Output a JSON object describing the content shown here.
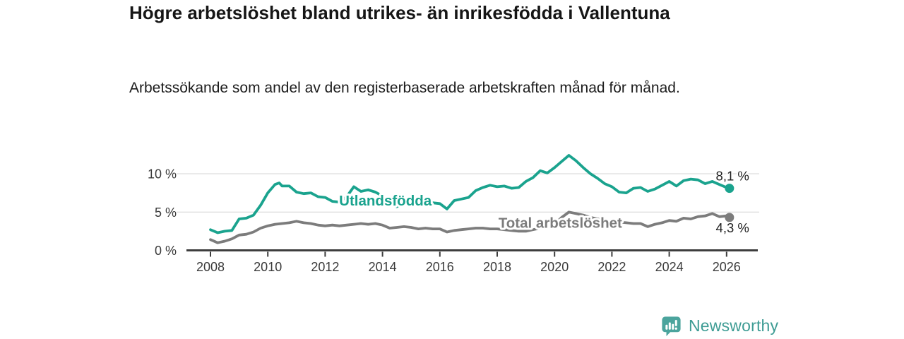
{
  "header": {
    "title": "Högre arbetslöshet bland utrikes- än inrikesfödda i Vallentuna",
    "subtitle": "Arbetssökande som andel av den registerbaserade arbetskraften månad för månad."
  },
  "chart_data": {
    "type": "line",
    "title": "Högre arbetslöshet bland utrikes- än inrikesfödda i Vallentuna",
    "subtitle": "Arbetssökande som andel av den registerbaserade arbetskraften månad för månad.",
    "unit": "%",
    "xlim": [
      2007.9,
      2026.6
    ],
    "ylim": [
      0,
      13.5
    ],
    "grid": "horizontal-only",
    "legend_position": "inline-labels-on-lines",
    "x_ticks": [
      2008,
      2010,
      2012,
      2014,
      2016,
      2018,
      2020,
      2022,
      2024,
      2026
    ],
    "x_tick_labels": [
      "2008",
      "2010",
      "2012",
      "2014",
      "2016",
      "2018",
      "2020",
      "2022",
      "2024",
      "2026"
    ],
    "y_ticks": [
      0,
      5,
      10
    ],
    "y_tick_labels": [
      "0 %",
      "5 %",
      "10 %"
    ],
    "series": [
      {
        "name": "Utlandsfödda",
        "color": "#1AA38E",
        "end_value": 8.1,
        "end_label": "8,1 %",
        "end_label_side": "above",
        "label_at": [
          2014.1,
          6.5
        ],
        "points": [
          [
            2008.0,
            2.7
          ],
          [
            2008.25,
            2.3
          ],
          [
            2008.5,
            2.5
          ],
          [
            2008.75,
            2.6
          ],
          [
            2009.0,
            4.1
          ],
          [
            2009.25,
            4.2
          ],
          [
            2009.5,
            4.6
          ],
          [
            2009.75,
            5.9
          ],
          [
            2010.0,
            7.5
          ],
          [
            2010.25,
            8.6
          ],
          [
            2010.4,
            8.8
          ],
          [
            2010.5,
            8.4
          ],
          [
            2010.75,
            8.4
          ],
          [
            2011.0,
            7.6
          ],
          [
            2011.25,
            7.4
          ],
          [
            2011.5,
            7.5
          ],
          [
            2011.75,
            7.0
          ],
          [
            2012.0,
            6.9
          ],
          [
            2012.25,
            6.4
          ],
          [
            2012.5,
            6.3
          ],
          [
            2012.75,
            7.0
          ],
          [
            2013.0,
            8.3
          ],
          [
            2013.25,
            7.7
          ],
          [
            2013.5,
            7.9
          ],
          [
            2013.75,
            7.6
          ],
          [
            2014.0,
            7.1
          ],
          [
            2014.25,
            6.1
          ],
          [
            2014.5,
            5.7
          ],
          [
            2014.75,
            6.3
          ],
          [
            2015.0,
            6.5
          ],
          [
            2015.25,
            6.4
          ],
          [
            2015.5,
            6.6
          ],
          [
            2015.75,
            6.2
          ],
          [
            2016.0,
            6.1
          ],
          [
            2016.25,
            5.4
          ],
          [
            2016.5,
            6.5
          ],
          [
            2016.75,
            6.7
          ],
          [
            2017.0,
            6.9
          ],
          [
            2017.25,
            7.8
          ],
          [
            2017.5,
            8.2
          ],
          [
            2017.75,
            8.5
          ],
          [
            2018.0,
            8.3
          ],
          [
            2018.25,
            8.4
          ],
          [
            2018.5,
            8.1
          ],
          [
            2018.75,
            8.2
          ],
          [
            2019.0,
            9.0
          ],
          [
            2019.25,
            9.5
          ],
          [
            2019.5,
            10.4
          ],
          [
            2019.75,
            10.1
          ],
          [
            2020.0,
            10.8
          ],
          [
            2020.25,
            11.6
          ],
          [
            2020.5,
            12.4
          ],
          [
            2020.75,
            11.7
          ],
          [
            2021.0,
            10.8
          ],
          [
            2021.25,
            10.0
          ],
          [
            2021.5,
            9.4
          ],
          [
            2021.75,
            8.7
          ],
          [
            2022.0,
            8.3
          ],
          [
            2022.25,
            7.6
          ],
          [
            2022.5,
            7.5
          ],
          [
            2022.75,
            8.1
          ],
          [
            2023.0,
            8.2
          ],
          [
            2023.25,
            7.7
          ],
          [
            2023.5,
            8.0
          ],
          [
            2023.75,
            8.5
          ],
          [
            2024.0,
            9.0
          ],
          [
            2024.25,
            8.4
          ],
          [
            2024.5,
            9.1
          ],
          [
            2024.75,
            9.3
          ],
          [
            2025.0,
            9.2
          ],
          [
            2025.25,
            8.7
          ],
          [
            2025.5,
            9.0
          ],
          [
            2025.75,
            8.6
          ],
          [
            2026.0,
            8.2
          ],
          [
            2026.1,
            8.1
          ]
        ]
      },
      {
        "name": "Total arbetslöshet",
        "color": "#7C7C7C",
        "end_value": 4.3,
        "end_label": "4,3 %",
        "end_label_side": "below",
        "label_at": [
          2020.2,
          3.6
        ],
        "points": [
          [
            2008.0,
            1.4
          ],
          [
            2008.25,
            1.0
          ],
          [
            2008.5,
            1.2
          ],
          [
            2008.75,
            1.5
          ],
          [
            2009.0,
            2.0
          ],
          [
            2009.25,
            2.1
          ],
          [
            2009.5,
            2.4
          ],
          [
            2009.75,
            2.9
          ],
          [
            2010.0,
            3.2
          ],
          [
            2010.25,
            3.4
          ],
          [
            2010.5,
            3.5
          ],
          [
            2010.75,
            3.6
          ],
          [
            2011.0,
            3.8
          ],
          [
            2011.25,
            3.6
          ],
          [
            2011.5,
            3.5
          ],
          [
            2011.75,
            3.3
          ],
          [
            2012.0,
            3.2
          ],
          [
            2012.25,
            3.3
          ],
          [
            2012.5,
            3.2
          ],
          [
            2012.75,
            3.3
          ],
          [
            2013.0,
            3.4
          ],
          [
            2013.25,
            3.5
          ],
          [
            2013.5,
            3.4
          ],
          [
            2013.75,
            3.5
          ],
          [
            2014.0,
            3.3
          ],
          [
            2014.25,
            2.9
          ],
          [
            2014.5,
            3.0
          ],
          [
            2014.75,
            3.1
          ],
          [
            2015.0,
            3.0
          ],
          [
            2015.25,
            2.8
          ],
          [
            2015.5,
            2.9
          ],
          [
            2015.75,
            2.8
          ],
          [
            2016.0,
            2.8
          ],
          [
            2016.25,
            2.4
          ],
          [
            2016.5,
            2.6
          ],
          [
            2016.75,
            2.7
          ],
          [
            2017.0,
            2.8
          ],
          [
            2017.25,
            2.9
          ],
          [
            2017.5,
            2.9
          ],
          [
            2017.75,
            2.8
          ],
          [
            2018.0,
            2.8
          ],
          [
            2018.25,
            2.7
          ],
          [
            2018.5,
            2.6
          ],
          [
            2018.75,
            2.5
          ],
          [
            2019.0,
            2.5
          ],
          [
            2019.25,
            2.7
          ],
          [
            2019.5,
            2.9
          ],
          [
            2019.75,
            3.2
          ],
          [
            2020.0,
            3.4
          ],
          [
            2020.25,
            4.3
          ],
          [
            2020.5,
            5.0
          ],
          [
            2020.75,
            4.8
          ],
          [
            2021.0,
            4.6
          ],
          [
            2021.25,
            4.3
          ],
          [
            2021.5,
            4.1
          ],
          [
            2021.75,
            3.9
          ],
          [
            2022.0,
            3.8
          ],
          [
            2022.25,
            3.7
          ],
          [
            2022.5,
            3.6
          ],
          [
            2022.75,
            3.5
          ],
          [
            2023.0,
            3.5
          ],
          [
            2023.25,
            3.1
          ],
          [
            2023.5,
            3.4
          ],
          [
            2023.75,
            3.6
          ],
          [
            2024.0,
            3.9
          ],
          [
            2024.25,
            3.8
          ],
          [
            2024.5,
            4.2
          ],
          [
            2024.75,
            4.1
          ],
          [
            2025.0,
            4.4
          ],
          [
            2025.25,
            4.5
          ],
          [
            2025.5,
            4.8
          ],
          [
            2025.75,
            4.4
          ],
          [
            2026.0,
            4.5
          ],
          [
            2026.1,
            4.3
          ]
        ]
      }
    ],
    "colors": {
      "axis": "#3D3D3D",
      "grid": "#D4D4D4",
      "tick_text": "#3A3A3A",
      "end_label_text": "#222222"
    }
  },
  "footer": {
    "brand": "Newsworthy",
    "logo_icon": "bar-chart-badge-icon",
    "brand_color": "#3E9C94",
    "badge_color": "#4BA49D"
  }
}
